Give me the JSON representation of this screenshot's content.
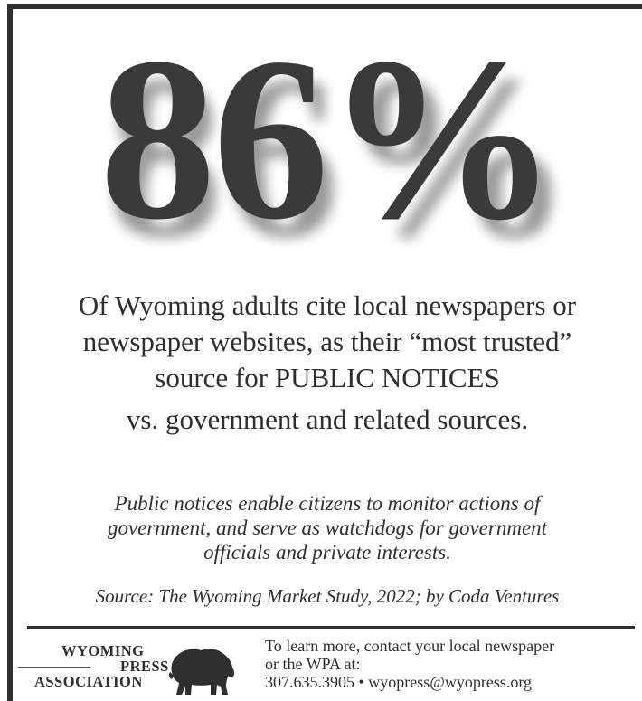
{
  "headline": {
    "percent": "86%"
  },
  "statement": {
    "line1": "Of Wyoming adults cite local newspapers or",
    "line2": "newspaper websites, as their “most trusted”",
    "line3": "source for PUBLIC NOTICES",
    "line4": "vs. government and related sources."
  },
  "quote": {
    "line1": "Public notices enable citizens to monitor actions of",
    "line2": "government, and serve as watchdogs for government",
    "line3": "officials and private interests."
  },
  "source": "Source: The Wyoming Market Study, 2022; by Coda Ventures",
  "footer": {
    "logo": {
      "word1": "WYOMING",
      "word2": "PRESS",
      "word3": "ASSOCIATION",
      "icon": "bison-icon"
    },
    "contact": {
      "line1": "To learn more, contact your local newspaper",
      "line2": "or the WPA at:",
      "line3": "307.635.3905 • wyopress@wyopress.org"
    }
  },
  "colors": {
    "ink": "#2b2b2b",
    "frame": "#2f2f2f",
    "background": "#ffffff"
  }
}
